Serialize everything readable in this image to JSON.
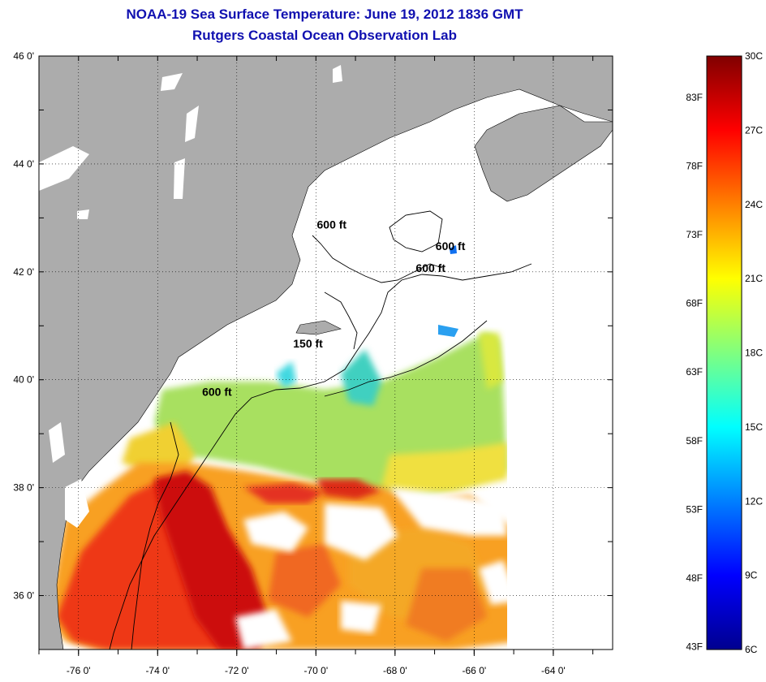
{
  "title": {
    "line1": "NOAA-19 Sea Surface Temperature:  June 19, 2012 1836 GMT",
    "line2": "Rutgers Coastal Ocean Observation Lab"
  },
  "map": {
    "lon_range": [
      -77,
      -62.5
    ],
    "lat_range": [
      35,
      46
    ],
    "lon_ticks": [
      {
        "value": -76,
        "label": "-76 0'"
      },
      {
        "value": -74,
        "label": "-74 0'"
      },
      {
        "value": -72,
        "label": "-72 0'"
      },
      {
        "value": -70,
        "label": "-70 0'"
      },
      {
        "value": -68,
        "label": "-68 0'"
      },
      {
        "value": -66,
        "label": "-66 0'"
      },
      {
        "value": -64,
        "label": "-64 0'"
      }
    ],
    "lat_ticks": [
      {
        "value": 46,
        "label": "46 0'"
      },
      {
        "value": 44,
        "label": "44 0'"
      },
      {
        "value": 42,
        "label": "42 0'"
      },
      {
        "value": 40,
        "label": "40 0'"
      },
      {
        "value": 38,
        "label": "38 0'"
      },
      {
        "value": 36,
        "label": "36 0'"
      }
    ],
    "contour_labels": [
      {
        "text": "600 ft",
        "lon": -69.6,
        "lat": 42.8
      },
      {
        "text": "600 ft",
        "lon": -66.6,
        "lat": 42.4
      },
      {
        "text": "600 ft",
        "lon": -67.1,
        "lat": 42.0
      },
      {
        "text": "150 ft",
        "lon": -70.2,
        "lat": 40.6
      },
      {
        "text": "600 ft",
        "lon": -72.5,
        "lat": 39.7
      }
    ],
    "land_color": "#acacac",
    "grid": true
  },
  "colorbar": {
    "min_c": 6,
    "max_c": 30,
    "celsius_labels": [
      "30C",
      "27C",
      "24C",
      "21C",
      "18C",
      "15C",
      "12C",
      "9C",
      "6C"
    ],
    "fahrenheit_labels": [
      "83F",
      "78F",
      "73F",
      "68F",
      "63F",
      "58F",
      "53F",
      "48F",
      "43F"
    ],
    "colormap": "jet"
  }
}
